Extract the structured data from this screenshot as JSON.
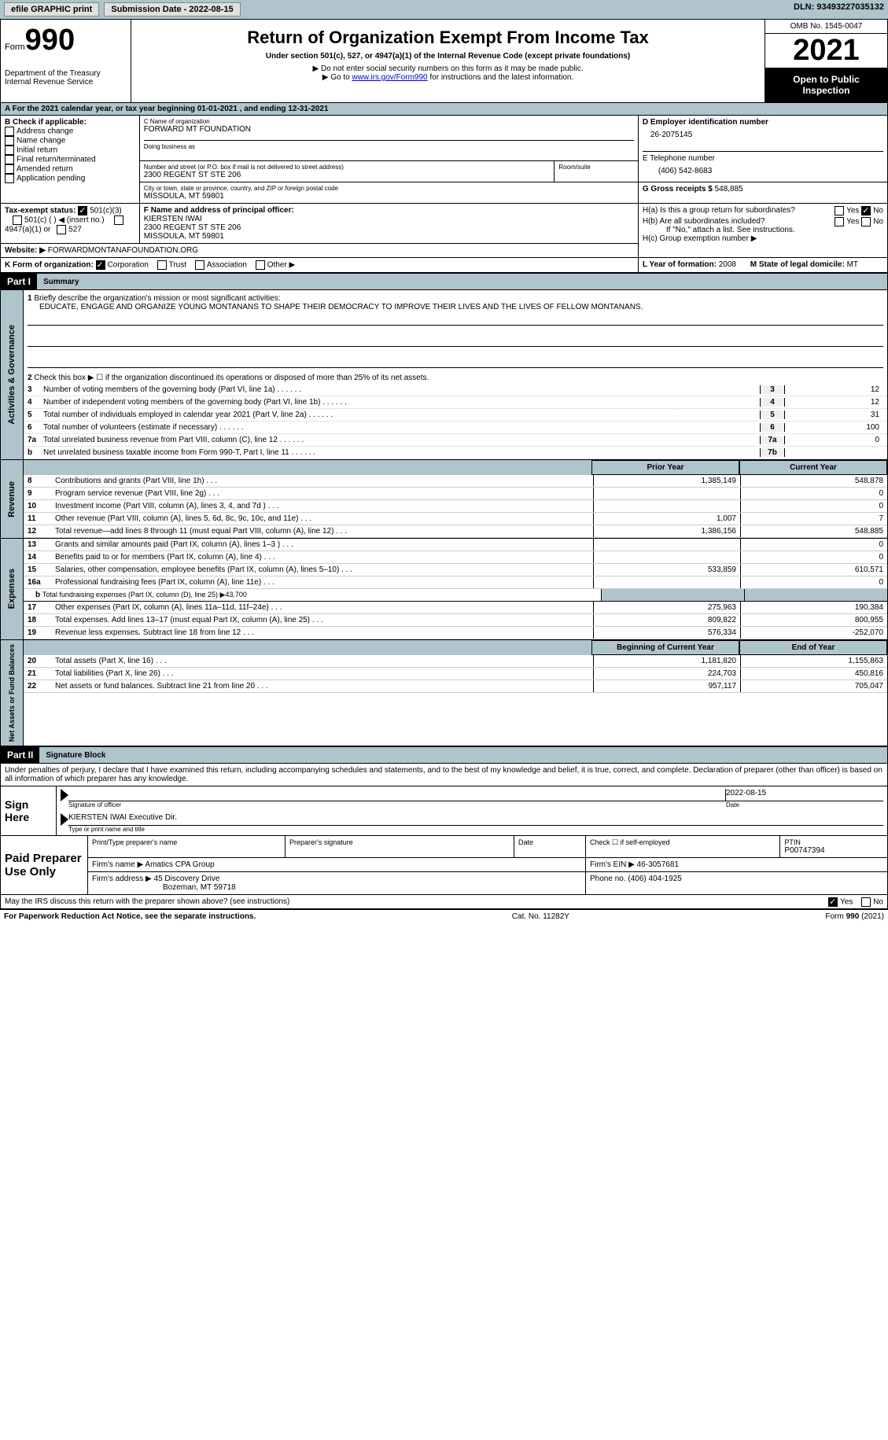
{
  "topbar": {
    "efile": "efile GRAPHIC print",
    "submission": "Submission Date - 2022-08-15",
    "dln": "DLN: 93493227035132"
  },
  "header": {
    "form": "990",
    "form_label": "Form",
    "title": "Return of Organization Exempt From Income Tax",
    "subtitle": "Under section 501(c), 527, or 4947(a)(1) of the Internal Revenue Code (except private foundations)",
    "note1": "▶ Do not enter social security numbers on this form as it may be made public.",
    "note2_pre": "▶ Go to ",
    "note2_link": "www.irs.gov/Form990",
    "note2_post": " for instructions and the latest information.",
    "dept": "Department of the Treasury",
    "irs": "Internal Revenue Service",
    "omb": "OMB No. 1545-0047",
    "year": "2021",
    "inspection": "Open to Public Inspection"
  },
  "sectionA": {
    "calendar": "A For the 2021 calendar year, or tax year beginning 01-01-2021   , and ending 12-31-2021",
    "b_label": "B Check if applicable:",
    "checks": [
      "Address change",
      "Name change",
      "Initial return",
      "Final return/terminated",
      "Amended return",
      "Application pending"
    ],
    "c_label": "C Name of organization",
    "org_name": "FORWARD MT FOUNDATION",
    "dba": "Doing business as",
    "addr_label": "Number and street (or P.O. box if mail is not delivered to street address)",
    "room": "Room/suite",
    "addr": "2300 REGENT ST STE 206",
    "city_label": "City or town, state or province, country, and ZIP or foreign postal code",
    "city": "MISSOULA, MT  59801",
    "d_label": "D Employer identification number",
    "ein": "26-2075145",
    "e_label": "E Telephone number",
    "phone": "(406) 542-8683",
    "g_label": "G Gross receipts $",
    "gross": "548,885",
    "f_label": "F Name and address of principal officer:",
    "officer_name": "KIERSTEN IWAI",
    "officer_addr": "2300 REGENT ST STE 206",
    "officer_city": "MISSOULA, MT  59801",
    "ha": "H(a)  Is this a group return for subordinates?",
    "hb": "H(b)  Are all subordinates included?",
    "hb_note": "If \"No,\" attach a list. See instructions.",
    "hc": "H(c)  Group exemption number ▶",
    "i_label": "Tax-exempt status:",
    "i_501c3": "501(c)(3)",
    "i_501c": "501(c) (  ) ◀ (insert no.)",
    "i_4947": "4947(a)(1) or",
    "i_527": "527",
    "j_label": "Website: ▶",
    "website": "FORWARDMONTANAFOUNDATION.ORG",
    "k_label": "K Form of organization:",
    "k_corp": "Corporation",
    "k_trust": "Trust",
    "k_assoc": "Association",
    "k_other": "Other ▶",
    "l_label": "L Year of formation:",
    "l_val": "2008",
    "m_label": "M State of legal domicile:",
    "m_val": "MT",
    "yes": "Yes",
    "no": "No"
  },
  "part1": {
    "header": "Part I",
    "title": "Summary",
    "mission_label": "Briefly describe the organization's mission or most significant activities:",
    "mission": "EDUCATE, ENGAGE AND ORGANIZE YOUNG MONTANANS TO SHAPE THEIR DEMOCRACY TO IMPROVE THEIR LIVES AND THE LIVES OF FELLOW MONTANANS.",
    "line2": "Check this box ▶ ☐ if the organization discontinued its operations or disposed of more than 25% of its net assets.",
    "lines_gov": [
      {
        "n": "3",
        "t": "Number of voting members of the governing body (Part VI, line 1a)",
        "box": "3",
        "v": "12"
      },
      {
        "n": "4",
        "t": "Number of independent voting members of the governing body (Part VI, line 1b)",
        "box": "4",
        "v": "12"
      },
      {
        "n": "5",
        "t": "Total number of individuals employed in calendar year 2021 (Part V, line 2a)",
        "box": "5",
        "v": "31"
      },
      {
        "n": "6",
        "t": "Total number of volunteers (estimate if necessary)",
        "box": "6",
        "v": "100"
      },
      {
        "n": "7a",
        "t": "Total unrelated business revenue from Part VIII, column (C), line 12",
        "box": "7a",
        "v": "0"
      },
      {
        "n": "b",
        "t": "Net unrelated business taxable income from Form 990-T, Part I, line 11",
        "box": "7b",
        "v": ""
      }
    ],
    "prior_year": "Prior Year",
    "current_year": "Current Year",
    "revenue": [
      {
        "n": "8",
        "t": "Contributions and grants (Part VIII, line 1h)",
        "p": "1,385,149",
        "c": "548,878"
      },
      {
        "n": "9",
        "t": "Program service revenue (Part VIII, line 2g)",
        "p": "",
        "c": "0"
      },
      {
        "n": "10",
        "t": "Investment income (Part VIII, column (A), lines 3, 4, and 7d )",
        "p": "",
        "c": "0"
      },
      {
        "n": "11",
        "t": "Other revenue (Part VIII, column (A), lines 5, 6d, 8c, 9c, 10c, and 11e)",
        "p": "1,007",
        "c": "7"
      },
      {
        "n": "12",
        "t": "Total revenue—add lines 8 through 11 (must equal Part VIII, column (A), line 12)",
        "p": "1,386,156",
        "c": "548,885"
      }
    ],
    "expenses": [
      {
        "n": "13",
        "t": "Grants and similar amounts paid (Part IX, column (A), lines 1–3 )",
        "p": "",
        "c": "0"
      },
      {
        "n": "14",
        "t": "Benefits paid to or for members (Part IX, column (A), line 4)",
        "p": "",
        "c": "0"
      },
      {
        "n": "15",
        "t": "Salaries, other compensation, employee benefits (Part IX, column (A), lines 5–10)",
        "p": "533,859",
        "c": "610,571"
      },
      {
        "n": "16a",
        "t": "Professional fundraising fees (Part IX, column (A), line 11e)",
        "p": "",
        "c": "0"
      }
    ],
    "line16b": "Total fundraising expenses (Part IX, column (D), line 25) ▶43,700",
    "expenses2": [
      {
        "n": "17",
        "t": "Other expenses (Part IX, column (A), lines 11a–11d, 11f–24e)",
        "p": "275,963",
        "c": "190,384"
      },
      {
        "n": "18",
        "t": "Total expenses. Add lines 13–17 (must equal Part IX, column (A), line 25)",
        "p": "809,822",
        "c": "800,955"
      },
      {
        "n": "19",
        "t": "Revenue less expenses. Subtract line 18 from line 12",
        "p": "576,334",
        "c": "-252,070"
      }
    ],
    "begin_year": "Beginning of Current Year",
    "end_year": "End of Year",
    "netassets": [
      {
        "n": "20",
        "t": "Total assets (Part X, line 16)",
        "p": "1,181,820",
        "c": "1,155,863"
      },
      {
        "n": "21",
        "t": "Total liabilities (Part X, line 26)",
        "p": "224,703",
        "c": "450,816"
      },
      {
        "n": "22",
        "t": "Net assets or fund balances. Subtract line 21 from line 20",
        "p": "957,117",
        "c": "705,047"
      }
    ],
    "side_gov": "Activities & Governance",
    "side_rev": "Revenue",
    "side_exp": "Expenses",
    "side_net": "Net Assets or Fund Balances"
  },
  "part2": {
    "header": "Part II",
    "title": "Signature Block",
    "declaration": "Under penalties of perjury, I declare that I have examined this return, including accompanying schedules and statements, and to the best of my knowledge and belief, it is true, correct, and complete. Declaration of preparer (other than officer) is based on all information of which preparer has any knowledge.",
    "sign_here": "Sign Here",
    "sig_officer": "Signature of officer",
    "sig_date": "2022-08-15",
    "date": "Date",
    "officer_name_title": "KIERSTEN IWAI  Executive Dir.",
    "type_name": "Type or print name and title",
    "paid": "Paid Preparer Use Only",
    "print_name": "Print/Type preparer's name",
    "prep_sig": "Preparer's signature",
    "check_self": "Check ☐ if self-employed",
    "ptin_label": "PTIN",
    "ptin": "P00747394",
    "firm_name_label": "Firm's name    ▶",
    "firm_name": "Amatics CPA Group",
    "firm_ein_label": "Firm's EIN ▶",
    "firm_ein": "46-3057681",
    "firm_addr_label": "Firm's address ▶",
    "firm_addr": "45 Discovery Drive",
    "firm_city": "Bozeman, MT  59718",
    "firm_phone_label": "Phone no.",
    "firm_phone": "(406) 404-1925",
    "discuss": "May the IRS discuss this return with the preparer shown above? (see instructions)"
  },
  "footer": {
    "paperwork": "For Paperwork Reduction Act Notice, see the separate instructions.",
    "cat": "Cat. No. 11282Y",
    "form": "Form 990 (2021)"
  }
}
